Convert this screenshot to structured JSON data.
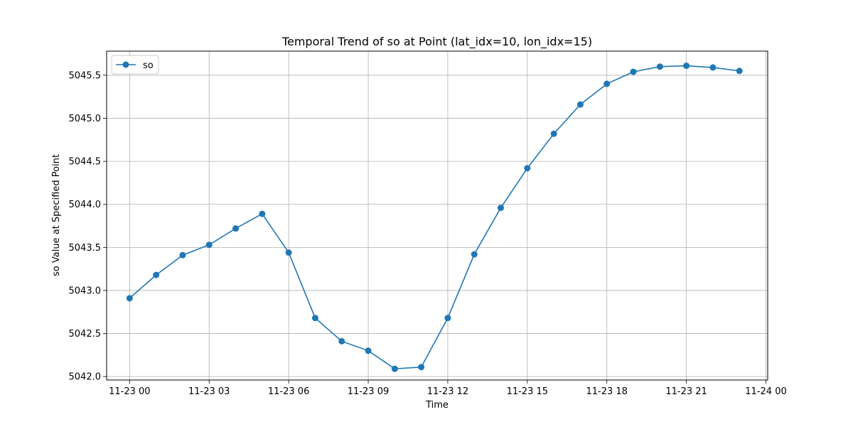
{
  "chart_data": {
    "type": "line",
    "title": "Temporal Trend of so at Point (lat_idx=10, lon_idx=15)",
    "xlabel": "Time",
    "ylabel": "so Value at Specified Point",
    "x_tick_labels": [
      "11-23 00",
      "11-23 03",
      "11-23 06",
      "11-23 09",
      "11-23 12",
      "11-23 15",
      "11-23 18",
      "11-23 21",
      "11-24 00"
    ],
    "y_tick_labels": [
      "5042.0",
      "5042.5",
      "5043.0",
      "5043.5",
      "5044.0",
      "5044.5",
      "5045.0",
      "5045.5"
    ],
    "y_ticks": [
      5042.0,
      5042.5,
      5043.0,
      5043.5,
      5044.0,
      5044.5,
      5045.0,
      5045.5
    ],
    "xlim": [
      "11-22 23:08",
      "11-24 00:04"
    ],
    "ylim": [
      5041.96,
      5045.78
    ],
    "grid": true,
    "legend_position": "upper-left",
    "x": [
      "11-23 00",
      "11-23 01",
      "11-23 02",
      "11-23 03",
      "11-23 04",
      "11-23 05",
      "11-23 06",
      "11-23 07",
      "11-23 08",
      "11-23 09",
      "11-23 10",
      "11-23 11",
      "11-23 12",
      "11-23 13",
      "11-23 14",
      "11-23 15",
      "11-23 16",
      "11-23 17",
      "11-23 18",
      "11-23 19",
      "11-23 20",
      "11-23 21",
      "11-23 22",
      "11-23 23"
    ],
    "series": [
      {
        "name": "so",
        "color": "#1f77b4",
        "marker": "circle",
        "values": [
          5042.91,
          5043.18,
          5043.41,
          5043.53,
          5043.72,
          5043.89,
          5043.44,
          5042.68,
          5042.41,
          5042.3,
          5042.09,
          5042.11,
          5042.68,
          5043.42,
          5043.96,
          5044.42,
          5044.82,
          5045.16,
          5045.4,
          5045.54,
          5045.6,
          5045.61,
          5045.59,
          5045.55
        ]
      }
    ]
  }
}
